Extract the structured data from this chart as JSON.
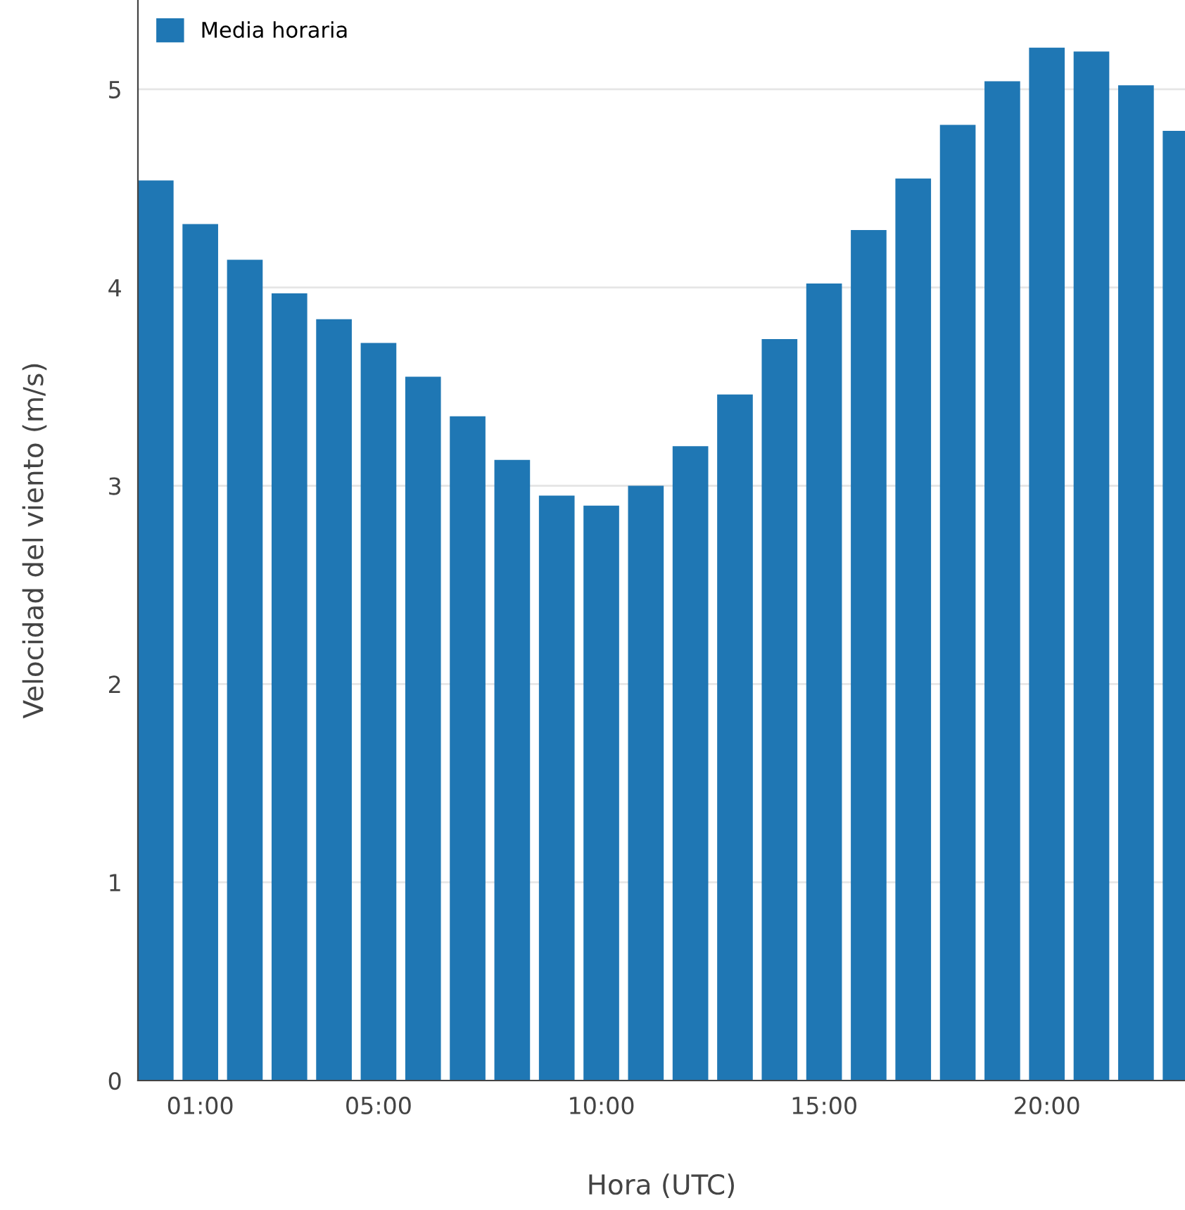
{
  "chart_data": {
    "type": "bar",
    "xlabel": "Hora (UTC)",
    "ylabel": "Velocidad del viento (m/s)",
    "x": [
      0,
      1,
      2,
      3,
      4,
      5,
      6,
      7,
      8,
      9,
      10,
      11,
      12,
      13,
      14,
      15,
      16,
      17,
      18,
      19,
      20,
      21,
      22,
      23
    ],
    "series": [
      {
        "name": "Media horaria",
        "color": "#1f77b4",
        "values": [
          4.54,
          4.32,
          4.14,
          3.97,
          3.84,
          3.72,
          3.55,
          3.35,
          3.13,
          2.95,
          2.9,
          3.0,
          3.2,
          3.46,
          3.74,
          4.02,
          4.29,
          4.55,
          4.82,
          5.04,
          5.21,
          5.19,
          5.02,
          4.79
        ]
      }
    ],
    "xlim": [
      -0.4,
      23.1
    ],
    "xticks": [
      {
        "value": 1,
        "label": "01:00"
      },
      {
        "value": 5,
        "label": "05:00"
      },
      {
        "value": 10,
        "label": "10:00"
      },
      {
        "value": 15,
        "label": "15:00"
      },
      {
        "value": 20,
        "label": "20:00"
      }
    ],
    "ylim": [
      0,
      5.45
    ],
    "yticks": [
      0,
      1,
      2,
      3,
      4,
      5
    ],
    "grid": "y",
    "legend": "top left"
  }
}
